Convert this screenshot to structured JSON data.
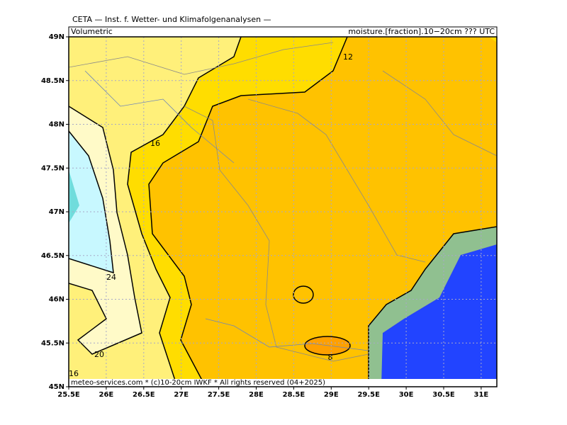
{
  "header": {
    "title": "CETA — Inst. f. Wetter- und Klimafolgenanalysen —",
    "left_label": "Volumetric",
    "right_label": "moisture.[fraction].10−20cm ??? UTC"
  },
  "footer": "meteo-services.com * (c)10-20cm IWKF * All rights reserved (04+2025)",
  "map": {
    "lat_labels": [
      "49N",
      "48.5N",
      "48N",
      "47.5N",
      "47N",
      "46.5N",
      "46N",
      "45.5N",
      "45N"
    ],
    "lon_labels": [
      "25.5E",
      "26E",
      "26.5E",
      "27E",
      "27.5E",
      "28E",
      "28.5E",
      "29E",
      "29.5E",
      "30E",
      "30.5E",
      "31E"
    ],
    "contour_labels": [
      "12",
      "16",
      "24",
      "20",
      "16",
      "8"
    ]
  }
}
